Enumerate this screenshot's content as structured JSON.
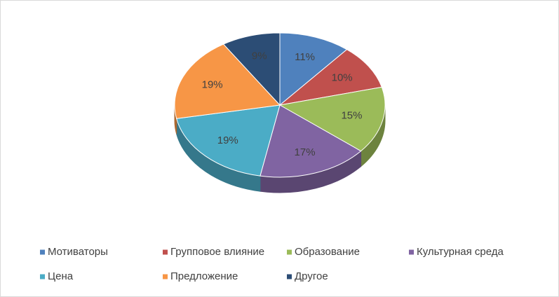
{
  "chart_data": {
    "type": "pie3d",
    "categories": [
      "Мотиваторы",
      "Групповое влияние",
      "Образование",
      "Культурная среда",
      "Цена",
      "Предложение",
      "Другое"
    ],
    "values": [
      11,
      10,
      15,
      17,
      19,
      19,
      9
    ],
    "value_labels": [
      "11%",
      "10%",
      "15%",
      "17%",
      "19%",
      "19%",
      "9%"
    ],
    "colors": [
      "#4f81bd",
      "#c0504d",
      "#9bbb59",
      "#8064a2",
      "#4bacc6",
      "#f79646",
      "#2c4d75"
    ],
    "legend": "bottom"
  }
}
